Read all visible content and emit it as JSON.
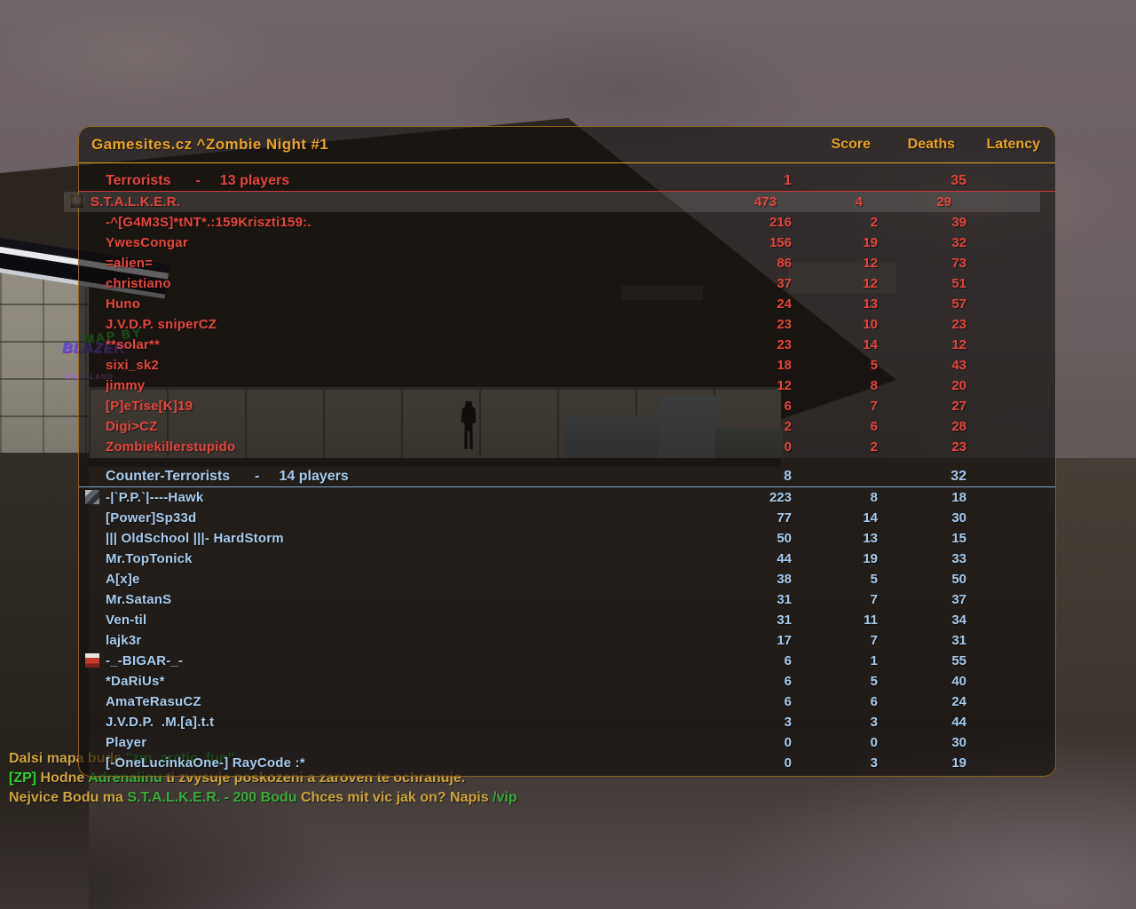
{
  "colors": {
    "accent_orange": "#e7a41f",
    "terrorist_red": "#e5463d",
    "terrorist_rule": "#cf3838",
    "ct_blue": "#a6cbee",
    "ct_rule": "#7fa8d6",
    "chat_gold": "#cfa43e",
    "chat_green": "#3bad3b",
    "chat_zp": "#2fd32f",
    "panel_border": "#aa731e"
  },
  "scoreboard": {
    "title": "Gamesites.cz ^Zombie Night #1",
    "columns": {
      "score": "Score",
      "deaths": "Deaths",
      "latency": "Latency"
    },
    "teams": [
      {
        "name": "Terrorists",
        "separator": "-",
        "players_count_label": "13 players",
        "score": "1",
        "latency": "35",
        "color": "#e5463d",
        "rule_color": "#cf3838",
        "players": [
          {
            "name": "S.T.A.L.K.E.R.",
            "score": "473",
            "deaths": "4",
            "latency": "29",
            "icon": "skull-badge",
            "highlight": true
          },
          {
            "name": "-^[G4M3S]*tNT*.:159Kriszti159:.",
            "score": "216",
            "deaths": "2",
            "latency": "39"
          },
          {
            "name": "YwesCongar",
            "score": "156",
            "deaths": "19",
            "latency": "32"
          },
          {
            "name": "=alien=",
            "score": "86",
            "deaths": "12",
            "latency": "73"
          },
          {
            "name": "christiano",
            "score": "37",
            "deaths": "12",
            "latency": "51"
          },
          {
            "name": "Huno",
            "score": "24",
            "deaths": "13",
            "latency": "57"
          },
          {
            "name": "J.V.D.P. sniperCZ",
            "score": "23",
            "deaths": "10",
            "latency": "23"
          },
          {
            "name": "**solar**",
            "score": "23",
            "deaths": "14",
            "latency": "12"
          },
          {
            "name": "sixi_sk2",
            "score": "18",
            "deaths": "5",
            "latency": "43"
          },
          {
            "name": "jimmy",
            "score": "12",
            "deaths": "8",
            "latency": "20"
          },
          {
            "name": "[P]eTise[K]19",
            "score": "6",
            "deaths": "7",
            "latency": "27"
          },
          {
            "name": "Digi>CZ",
            "score": "2",
            "deaths": "6",
            "latency": "28"
          },
          {
            "name": "Zombiekillerstupido",
            "score": "0",
            "deaths": "2",
            "latency": "23"
          }
        ]
      },
      {
        "name": "Counter-Terrorists",
        "separator": "-",
        "players_count_label": "14 players",
        "score": "8",
        "latency": "32",
        "color": "#a6cbee",
        "rule_color": "#7fa8d6",
        "players": [
          {
            "name": "-|`P.P.`|----Hawk",
            "score": "223",
            "deaths": "8",
            "latency": "18",
            "icon": "hawk-badge"
          },
          {
            "name": "[Power]Sp33d",
            "score": "77",
            "deaths": "14",
            "latency": "30"
          },
          {
            "name": "||| OldSchool |||- HardStorm",
            "score": "50",
            "deaths": "13",
            "latency": "15"
          },
          {
            "name": "Mr.TopTonick",
            "score": "44",
            "deaths": "19",
            "latency": "33"
          },
          {
            "name": "A[x]e",
            "score": "38",
            "deaths": "5",
            "latency": "50"
          },
          {
            "name": "Mr.SatanS",
            "score": "31",
            "deaths": "7",
            "latency": "37"
          },
          {
            "name": "Ven-til",
            "score": "31",
            "deaths": "11",
            "latency": "34"
          },
          {
            "name": "lajk3r",
            "score": "17",
            "deaths": "7",
            "latency": "31"
          },
          {
            "name": "-_-BIGAR-_-",
            "score": "6",
            "deaths": "1",
            "latency": "55",
            "icon": "bigar-badge"
          },
          {
            "name": "*DaRiUs*",
            "score": "6",
            "deaths": "5",
            "latency": "40"
          },
          {
            "name": "AmaTeRasuCZ",
            "score": "6",
            "deaths": "6",
            "latency": "24"
          },
          {
            "name": "J.V.D.P.  .M.[a].t.t",
            "score": "3",
            "deaths": "3",
            "latency": "44"
          },
          {
            "name": "Player",
            "score": "0",
            "deaths": "0",
            "latency": "30"
          },
          {
            "name": "[-OneLucinkaOne-] RayCode :*",
            "score": "0",
            "deaths": "3",
            "latency": "19"
          }
        ]
      }
    ]
  },
  "chat": {
    "lines": [
      {
        "segments": [
          {
            "text": "Dalsi mapa bude ",
            "color": "gold"
          },
          {
            "text": "\"zm_arctic_fun\"",
            "color": "green"
          }
        ]
      },
      {
        "segments": [
          {
            "text": "[ZP]",
            "color": "zp"
          },
          {
            "text": " Hodne ",
            "color": "gold"
          },
          {
            "text": "Adrenalinu",
            "color": "green"
          },
          {
            "text": " ti zvysuje poskozeni a zaroven te ochranuje.",
            "color": "gold"
          }
        ]
      },
      {
        "segments": [
          {
            "text": "Nejvice Bodu ma ",
            "color": "gold"
          },
          {
            "text": "S.T.A.L.K.E.R. - 200 Bodu",
            "color": "green"
          },
          {
            "text": " Chces mit vic jak on? Napis ",
            "color": "gold"
          },
          {
            "text": "/vip",
            "color": "green"
          }
        ]
      }
    ]
  },
  "world": {
    "map_by_text": "MAP BY",
    "graffiti_brand": "BLAZER",
    "graffiti_url": "WWW.LAND"
  }
}
